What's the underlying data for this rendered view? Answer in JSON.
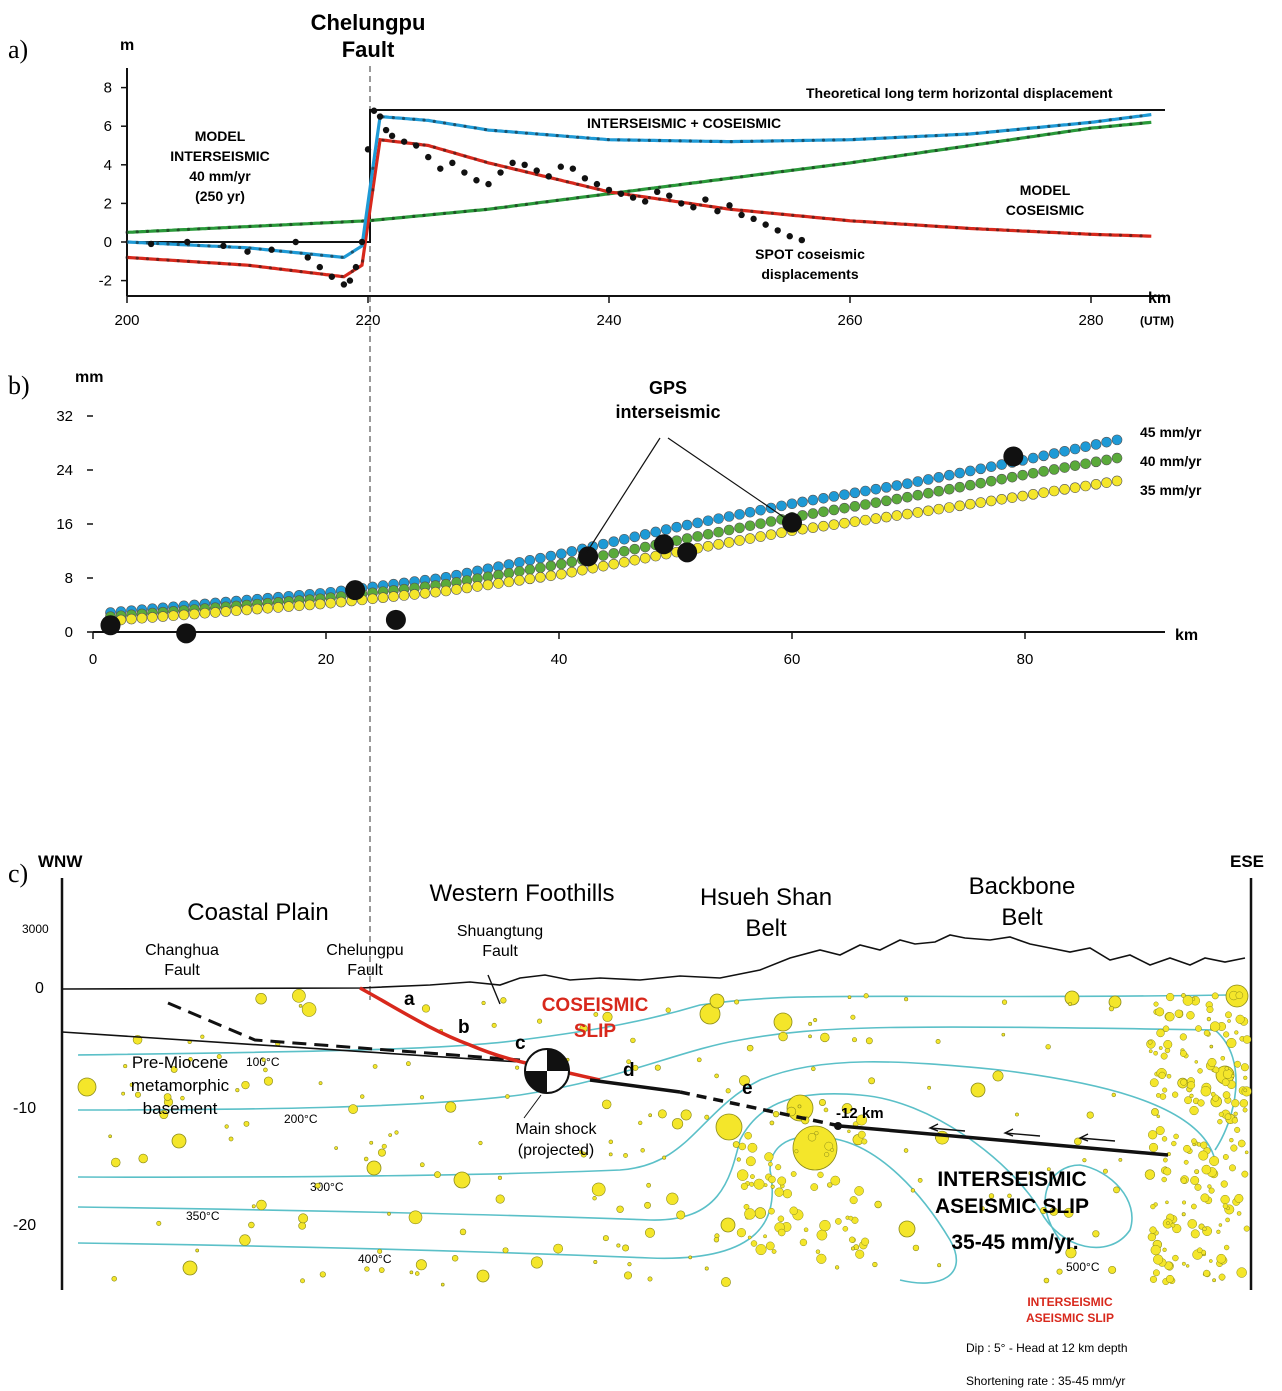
{
  "fault_header": {
    "line1": "Chelungpu",
    "line2": "Fault"
  },
  "panel_a": {
    "letter": "a)",
    "y_unit": "m",
    "x_unit": "km",
    "x_unit_note": "(UTM)",
    "y_ticks": [
      "8",
      "6",
      "4",
      "2",
      "0",
      "-2"
    ],
    "x_ticks": [
      "200",
      "220",
      "240",
      "260",
      "280"
    ],
    "labels": {
      "theoretical": "Theoretical long term horizontal displacement",
      "inter_co": "INTERSEISMIC + COSEISMIC",
      "model_inter_1": "MODEL",
      "model_inter_2": "INTERSEISMIC",
      "model_inter_3": "40 mm/yr",
      "model_inter_4": "(250 yr)",
      "model_co_1": "MODEL",
      "model_co_2": "COSEISMIC",
      "spot_1": "SPOT coseismic",
      "spot_2": "displacements"
    },
    "colors": {
      "interseismic": "#2a9a3a",
      "coseismic": "#d8281c",
      "combined": "#1e9ad6",
      "spot": "#111111"
    }
  },
  "panel_b": {
    "letter": "b)",
    "y_unit": "mm",
    "x_unit": "km",
    "y_ticks": [
      "32",
      "24",
      "16",
      "8",
      "0"
    ],
    "x_ticks": [
      "0",
      "20",
      "40",
      "60",
      "80"
    ],
    "gps_1": "GPS",
    "gps_2": "interseismic",
    "rates": [
      "45 mm/yr",
      "40 mm/yr",
      "35 mm/yr"
    ],
    "colors": {
      "r45": "#1e9ad6",
      "r40": "#5aaa3a",
      "r35": "#f4e62a"
    }
  },
  "panel_c": {
    "letter": "c)",
    "wnw": "WNW",
    "ese": "ESE",
    "y_ticks": [
      "3000",
      "0",
      "-10",
      "-20"
    ],
    "regions": {
      "coastal": "Coastal Plain",
      "western": "Western Foothills",
      "hsueh_1": "Hsueh Shan",
      "hsueh_2": "Belt",
      "backbone_1": "Backbone",
      "backbone_2": "Belt"
    },
    "faults": {
      "changhua_1": "Changhua",
      "changhua_2": "Fault",
      "chelungpu_1": "Chelungpu",
      "chelungpu_2": "Fault",
      "shuang_1": "Shuangtung",
      "shuang_2": "Fault"
    },
    "coseismic_1": "COSEISMIC",
    "coseismic_2": "SLIP",
    "segments": [
      "a",
      "b",
      "c",
      "d",
      "e"
    ],
    "basement_1": "Pre-Miocene",
    "basement_2": "metamorphic",
    "basement_3": "basement",
    "isotherms": [
      "100°C",
      "200°C",
      "300°C",
      "350°C",
      "400°C",
      "500°C"
    ],
    "mainshock_1": "Main shock",
    "mainshock_2": "(projected)",
    "depth_label": "-12 km",
    "inter_1": "INTERSEISMIC",
    "inter_2": "ASEISMIC SLIP",
    "inter_3": "35-45 mm/yr.",
    "legend_1": "INTERSEISMIC",
    "legend_2": "ASEISMIC SLIP",
    "dip": "Dip : 5° - Head at 12 km depth",
    "shortening": "Shortening rate : 35-45 mm/yr",
    "colors": {
      "isotherm": "#5bc0c8",
      "slip": "#d8281c",
      "quake": "#f4e62a"
    }
  },
  "chart_data": [
    {
      "type": "line",
      "xlabel": "km",
      "ylabel": "m",
      "xlim": [
        200,
        285
      ],
      "ylim": [
        -2.5,
        8.5
      ],
      "series": [
        {
          "name": "MODEL INTERSEISMIC",
          "x": [
            200,
            210,
            220,
            230,
            240,
            250,
            260,
            270,
            280,
            285
          ],
          "values": [
            0.5,
            0.8,
            1.1,
            1.7,
            2.5,
            3.3,
            4.1,
            5.0,
            5.9,
            6.2
          ]
        },
        {
          "name": "MODEL COSEISMIC",
          "x": [
            200,
            210,
            218,
            219.5,
            221,
            225,
            230,
            240,
            250,
            260,
            270,
            280,
            285
          ],
          "values": [
            -0.8,
            -1.2,
            -1.8,
            -1.2,
            5.3,
            5.0,
            4.1,
            2.6,
            1.7,
            1.1,
            0.7,
            0.4,
            0.3
          ]
        },
        {
          "name": "INTERSEISMIC + COSEISMIC",
          "x": [
            200,
            210,
            218,
            219.5,
            221,
            225,
            230,
            240,
            250,
            260,
            270,
            280,
            285
          ],
          "values": [
            0.0,
            -0.3,
            -0.8,
            -0.2,
            6.5,
            6.3,
            5.8,
            5.3,
            5.2,
            5.3,
            5.6,
            6.2,
            6.6
          ]
        },
        {
          "name": "SPOT coseismic displacements",
          "x": [
            202,
            205,
            208,
            210,
            212,
            214,
            215,
            216,
            217,
            218,
            218.5,
            219,
            219.5,
            220,
            220.5,
            221,
            221.5,
            222,
            223,
            224,
            225,
            226,
            227,
            228,
            229,
            230,
            231,
            232,
            233,
            234,
            235,
            236,
            237,
            238,
            239,
            240,
            241,
            242,
            243,
            244,
            245,
            246,
            247,
            248,
            249,
            250,
            251,
            252,
            253,
            254,
            255,
            256
          ],
          "values": [
            -0.1,
            0.0,
            -0.2,
            -0.5,
            -0.4,
            0.0,
            -0.8,
            -1.3,
            -1.8,
            -2.2,
            -2.0,
            -1.3,
            0.0,
            4.8,
            6.8,
            6.5,
            5.8,
            5.5,
            5.2,
            5.0,
            4.4,
            3.8,
            4.1,
            3.6,
            3.2,
            3.0,
            3.6,
            4.1,
            4.0,
            3.7,
            3.4,
            3.9,
            3.8,
            3.3,
            3.0,
            2.7,
            2.5,
            2.3,
            2.1,
            2.6,
            2.4,
            2.0,
            1.8,
            2.2,
            1.6,
            1.9,
            1.4,
            1.2,
            0.9,
            0.6,
            0.3,
            0.1
          ]
        }
      ],
      "x_ticks": [
        200,
        220,
        240,
        260,
        280
      ],
      "y_ticks": [
        8,
        6,
        4,
        2,
        0,
        -2
      ],
      "annotations": [
        "Theoretical long term horizontal displacement"
      ]
    },
    {
      "type": "scatter",
      "xlabel": "km",
      "ylabel": "mm",
      "xlim": [
        0,
        90
      ],
      "ylim": [
        0,
        34
      ],
      "series": [
        {
          "name": "45 mm/yr",
          "x": [
            1,
            20,
            30,
            40,
            50,
            60,
            70,
            80,
            88
          ],
          "values": [
            2.8,
            5.8,
            8.0,
            11.5,
            15.5,
            19.0,
            22.0,
            25.5,
            28.5
          ]
        },
        {
          "name": "40 mm/yr",
          "x": [
            1,
            20,
            30,
            40,
            50,
            60,
            70,
            80,
            88
          ],
          "values": [
            2.2,
            5.0,
            7.0,
            10.0,
            13.5,
            17.0,
            20.0,
            23.3,
            25.8
          ]
        },
        {
          "name": "35 mm/yr",
          "x": [
            1,
            20,
            30,
            40,
            50,
            60,
            70,
            80,
            88
          ],
          "values": [
            1.6,
            4.2,
            6.0,
            8.5,
            11.8,
            15.0,
            17.5,
            20.2,
            22.4
          ]
        },
        {
          "name": "GPS interseismic",
          "x": [
            1.5,
            8,
            22.5,
            26,
            42.5,
            49,
            51,
            60,
            79
          ],
          "values": [
            1,
            -0.2,
            6.2,
            1.8,
            11.2,
            13.0,
            11.8,
            16.2,
            26.0
          ]
        }
      ],
      "x_ticks": [
        0,
        20,
        40,
        60,
        80
      ],
      "y_ticks": [
        0,
        8,
        16,
        24,
        32
      ]
    }
  ]
}
